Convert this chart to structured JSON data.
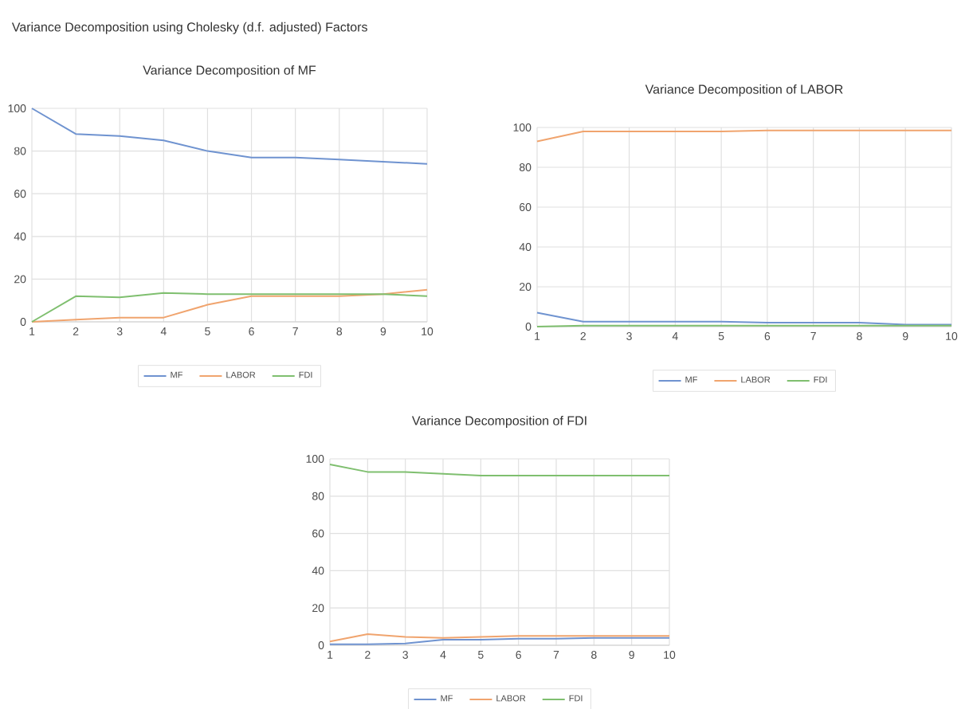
{
  "chart_data": [
    {
      "type": "line",
      "title": "Variance Decomposition of MF",
      "annotations": [
        "Variance Decomposition using Cholesky (d.f. adjusted) Factors"
      ],
      "categories": [
        "1",
        "2",
        "3",
        "4",
        "5",
        "6",
        "7",
        "8",
        "9",
        "10"
      ],
      "series": [
        {
          "name": "MF",
          "color": "#6f93d0",
          "values": [
            100,
            88,
            87,
            85,
            80,
            77,
            77,
            76,
            75,
            74
          ]
        },
        {
          "name": "LABOR",
          "color": "#f0a46e",
          "values": [
            0,
            1,
            2,
            2,
            8,
            12,
            12,
            12,
            13,
            15
          ]
        },
        {
          "name": "FDI",
          "color": "#7fbf6f",
          "values": [
            0,
            12,
            11.5,
            13.5,
            13,
            13,
            13,
            13,
            13,
            12
          ]
        }
      ],
      "ylim": [
        0,
        100
      ],
      "yticks": [
        0,
        20,
        40,
        60,
        80,
        100
      ],
      "grid": true,
      "legend": "bottom"
    },
    {
      "type": "line",
      "title": "Variance Decomposition of LABOR",
      "categories": [
        "1",
        "2",
        "3",
        "4",
        "5",
        "6",
        "7",
        "8",
        "9",
        "10"
      ],
      "series": [
        {
          "name": "MF",
          "color": "#6f93d0",
          "values": [
            7,
            2.5,
            2.5,
            2.5,
            2.5,
            2,
            2,
            2,
            1,
            1
          ]
        },
        {
          "name": "LABOR",
          "color": "#f0a46e",
          "values": [
            93,
            98,
            98,
            98,
            98,
            98.5,
            98.5,
            98.5,
            98.5,
            98.5
          ]
        },
        {
          "name": "FDI",
          "color": "#7fbf6f",
          "values": [
            0,
            0.5,
            0.5,
            0.5,
            0.5,
            0.5,
            0.5,
            0.5,
            0.5,
            0.5
          ]
        }
      ],
      "ylim": [
        0,
        100
      ],
      "yticks": [
        0,
        20,
        40,
        60,
        80,
        100
      ],
      "grid": true,
      "legend": "bottom"
    },
    {
      "type": "line",
      "title": "Variance Decomposition of FDI",
      "categories": [
        "1",
        "2",
        "3",
        "4",
        "5",
        "6",
        "7",
        "8",
        "9",
        "10"
      ],
      "series": [
        {
          "name": "MF",
          "color": "#6f93d0",
          "values": [
            0.5,
            0.5,
            1,
            3,
            3,
            3.5,
            3.5,
            4,
            4,
            4
          ]
        },
        {
          "name": "LABOR",
          "color": "#f0a46e",
          "values": [
            2,
            6,
            4.5,
            4,
            4.5,
            5,
            5,
            5,
            5,
            5
          ]
        },
        {
          "name": "FDI",
          "color": "#7fbf6f",
          "values": [
            97,
            93,
            93,
            92,
            91,
            91,
            91,
            91,
            91,
            91
          ]
        }
      ],
      "ylim": [
        0,
        100
      ],
      "yticks": [
        0,
        20,
        40,
        60,
        80,
        100
      ],
      "grid": true,
      "legend": "bottom"
    }
  ]
}
